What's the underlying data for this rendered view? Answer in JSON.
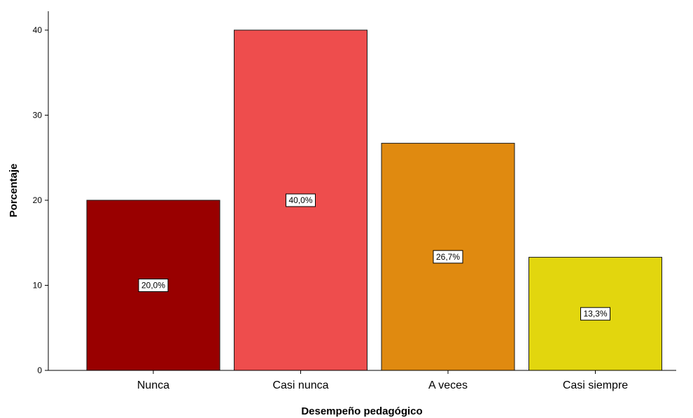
{
  "chart_data": {
    "type": "bar",
    "title": "",
    "xlabel": "Desempeño pedagógico",
    "ylabel": "Porcentaje",
    "categories": [
      "Nunca",
      "Casi nunca",
      "A veces",
      "Casi siempre"
    ],
    "values": [
      20.0,
      40.0,
      26.7,
      13.3
    ],
    "data_labels": [
      "20,0%",
      "40,0%",
      "26,7%",
      "13,3%"
    ],
    "colors": [
      "#990000",
      "#ee4d4d",
      "#e08a10",
      "#e2d60e"
    ],
    "ylim": [
      0,
      42
    ],
    "yticks": [
      0,
      10,
      20,
      30,
      40
    ],
    "ytick_labels": [
      "0",
      "10",
      "20",
      "30",
      "40"
    ],
    "grid": false,
    "legend": false
  }
}
